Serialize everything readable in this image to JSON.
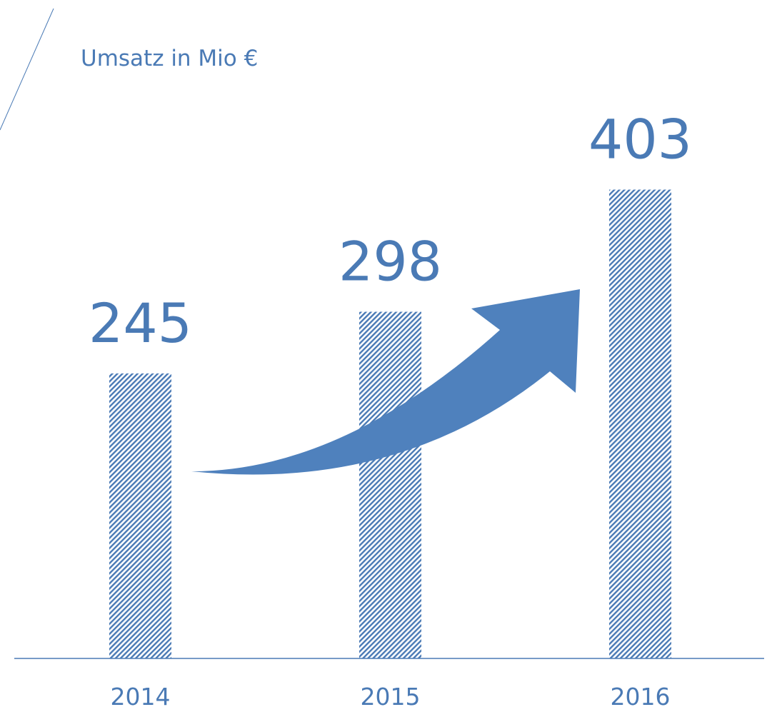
{
  "chart_data": {
    "type": "bar",
    "title": "Umsatz in Mio €",
    "categories": [
      "2014",
      "2015",
      "2016"
    ],
    "values": [
      245,
      298,
      403
    ],
    "color": "#4a7ab5",
    "ylim": [
      0,
      500
    ]
  }
}
